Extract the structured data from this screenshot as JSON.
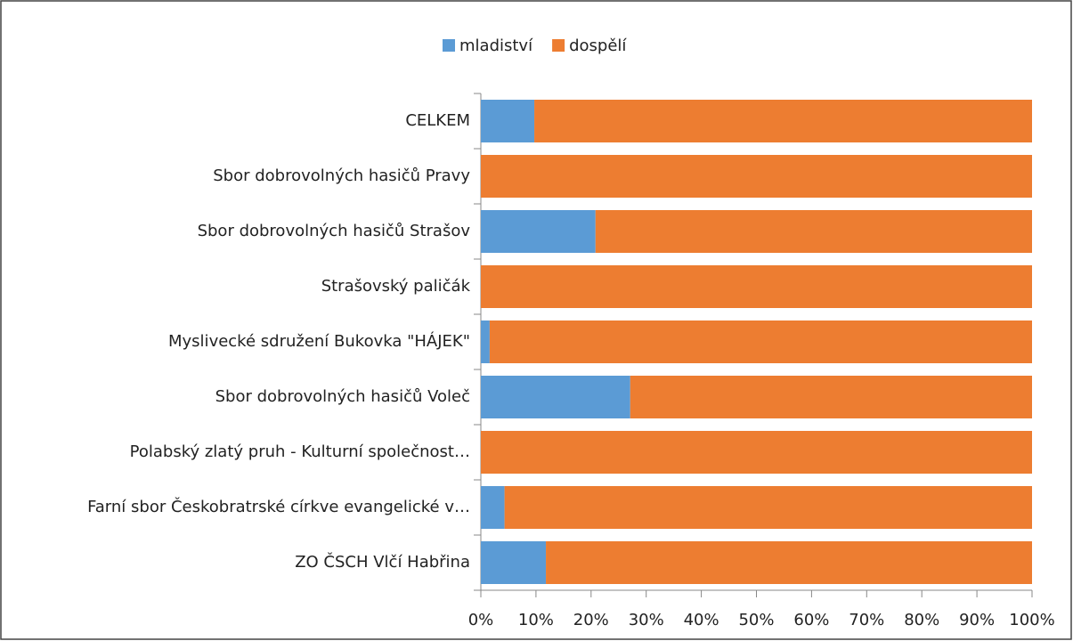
{
  "chart_data": {
    "type": "stacked_bar_horizontal",
    "categories": [
      "CELKEM",
      "Sbor dobrovolných hasičů Pravy",
      "Sbor dobrovolných hasičů Strašov",
      "Strašovský paličák",
      "Myslivecké sdružení Bukovka \"HÁJEK\"",
      "Sbor dobrovolných hasičů Voleč",
      "Polabský zlatý pruh - Kulturní společnost…",
      "Farní sbor Českobratrské církve evangelické v…",
      "ZO ČSCH Vlčí Habřina"
    ],
    "series": [
      {
        "name": "mladiství",
        "color": "#5b9bd5",
        "values": [
          9.7,
          0,
          20.8,
          0,
          1.6,
          27.1,
          0,
          4.3,
          11.8
        ]
      },
      {
        "name": "dospělí",
        "color": "#ed7d31",
        "values": [
          90.3,
          100,
          79.2,
          100,
          98.4,
          72.9,
          100,
          95.7,
          88.2
        ]
      }
    ],
    "xlim": [
      0,
      100
    ],
    "xticks": [
      {
        "value": 0,
        "label": "0%"
      },
      {
        "value": 10,
        "label": "10%"
      },
      {
        "value": 20,
        "label": "20%"
      },
      {
        "value": 30,
        "label": "30%"
      },
      {
        "value": 40,
        "label": "40%"
      },
      {
        "value": 50,
        "label": "50%"
      },
      {
        "value": 60,
        "label": "60%"
      },
      {
        "value": 70,
        "label": "70%"
      },
      {
        "value": 80,
        "label": "80%"
      },
      {
        "value": 90,
        "label": "90%"
      },
      {
        "value": 100,
        "label": "100%"
      }
    ],
    "legend": "top"
  }
}
